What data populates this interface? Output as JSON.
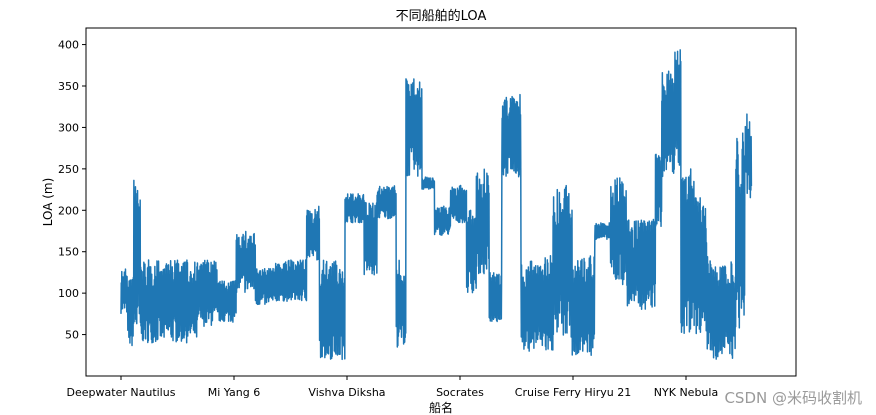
{
  "chart_data": {
    "type": "line",
    "title": "不同船舶的LOA",
    "xlabel": "船名",
    "ylabel": "LOA (m)",
    "ylim": [
      0,
      420
    ],
    "yticks": [
      50,
      100,
      150,
      200,
      250,
      300,
      350,
      400
    ],
    "grid": false,
    "x_tick_labels": [
      "Deepwater Nautilus",
      "Mi Yang 6",
      "Vishva Diksha",
      "Socrates",
      "Cruise Ferry Hiryu 21",
      "NYK Nebula"
    ],
    "series": [
      {
        "color": "#1f77b4",
        "segments": [
          {
            "from": 0.0,
            "to": 0.01,
            "lo": 75,
            "hi": 130
          },
          {
            "from": 0.01,
            "to": 0.02,
            "lo": 35,
            "hi": 125
          },
          {
            "from": 0.02,
            "to": 0.03,
            "lo": 40,
            "hi": 240
          },
          {
            "from": 0.03,
            "to": 0.12,
            "lo": 40,
            "hi": 140
          },
          {
            "from": 0.12,
            "to": 0.15,
            "lo": 60,
            "hi": 140
          },
          {
            "from": 0.15,
            "to": 0.18,
            "lo": 65,
            "hi": 115
          },
          {
            "from": 0.18,
            "to": 0.21,
            "lo": 100,
            "hi": 175
          },
          {
            "from": 0.21,
            "to": 0.24,
            "lo": 85,
            "hi": 130
          },
          {
            "from": 0.24,
            "to": 0.29,
            "lo": 90,
            "hi": 140
          },
          {
            "from": 0.29,
            "to": 0.31,
            "lo": 140,
            "hi": 205
          },
          {
            "from": 0.31,
            "to": 0.35,
            "lo": 20,
            "hi": 140
          },
          {
            "from": 0.35,
            "to": 0.38,
            "lo": 185,
            "hi": 220
          },
          {
            "from": 0.38,
            "to": 0.4,
            "lo": 120,
            "hi": 210
          },
          {
            "from": 0.4,
            "to": 0.43,
            "lo": 190,
            "hi": 230
          },
          {
            "from": 0.43,
            "to": 0.445,
            "lo": 35,
            "hi": 140
          },
          {
            "from": 0.445,
            "to": 0.47,
            "lo": 240,
            "hi": 360
          },
          {
            "from": 0.47,
            "to": 0.49,
            "lo": 225,
            "hi": 240
          },
          {
            "from": 0.49,
            "to": 0.515,
            "lo": 170,
            "hi": 205
          },
          {
            "from": 0.515,
            "to": 0.54,
            "lo": 185,
            "hi": 230
          },
          {
            "from": 0.54,
            "to": 0.555,
            "lo": 100,
            "hi": 200
          },
          {
            "from": 0.555,
            "to": 0.575,
            "lo": 120,
            "hi": 250
          },
          {
            "from": 0.575,
            "to": 0.595,
            "lo": 65,
            "hi": 125
          },
          {
            "from": 0.595,
            "to": 0.625,
            "lo": 240,
            "hi": 340
          },
          {
            "from": 0.625,
            "to": 0.66,
            "lo": 30,
            "hi": 140
          },
          {
            "from": 0.66,
            "to": 0.675,
            "lo": 25,
            "hi": 150
          },
          {
            "from": 0.675,
            "to": 0.705,
            "lo": 45,
            "hi": 230
          },
          {
            "from": 0.705,
            "to": 0.74,
            "lo": 25,
            "hi": 145
          },
          {
            "from": 0.74,
            "to": 0.765,
            "lo": 165,
            "hi": 185
          },
          {
            "from": 0.765,
            "to": 0.79,
            "lo": 110,
            "hi": 240
          },
          {
            "from": 0.79,
            "to": 0.835,
            "lo": 80,
            "hi": 190
          },
          {
            "from": 0.835,
            "to": 0.845,
            "lo": 180,
            "hi": 270
          },
          {
            "from": 0.845,
            "to": 0.865,
            "lo": 240,
            "hi": 370
          },
          {
            "from": 0.865,
            "to": 0.875,
            "lo": 250,
            "hi": 400
          },
          {
            "from": 0.875,
            "to": 0.9,
            "lo": 50,
            "hi": 250
          },
          {
            "from": 0.9,
            "to": 0.915,
            "lo": 50,
            "hi": 220
          },
          {
            "from": 0.915,
            "to": 0.925,
            "lo": 30,
            "hi": 145
          },
          {
            "from": 0.925,
            "to": 0.96,
            "lo": 20,
            "hi": 140
          },
          {
            "from": 0.96,
            "to": 0.975,
            "lo": 55,
            "hi": 300
          },
          {
            "from": 0.975,
            "to": 0.985,
            "lo": 215,
            "hi": 320
          }
        ]
      }
    ]
  },
  "watermark": "CSDN @米码收割机"
}
